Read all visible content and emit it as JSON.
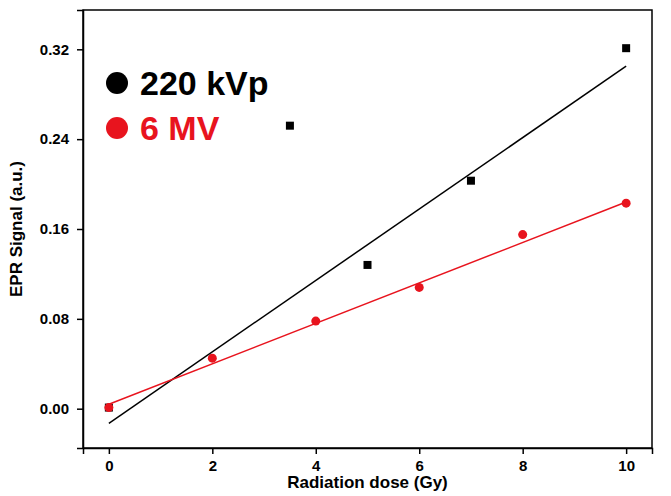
{
  "chart_data": {
    "type": "scatter",
    "x_label": "Radiation dose (Gy)",
    "y_label": "EPR Signal (a.u.)",
    "xlim": [
      -0.5,
      10.5
    ],
    "ylim": [
      -0.035,
      0.355
    ],
    "xticks": [
      0,
      2,
      4,
      6,
      8,
      10
    ],
    "yticks": [
      {
        "value": 0,
        "label": "0.00"
      },
      {
        "value": 0.08,
        "label": "0.08"
      },
      {
        "value": 0.16,
        "label": "0.16"
      },
      {
        "value": 0.24,
        "label": "0.24"
      },
      {
        "value": 0.32,
        "label": "0.32"
      }
    ],
    "legend": "upper left",
    "series": [
      {
        "name": "220 kVp",
        "color": "#000000",
        "marker": "square",
        "x": [
          0,
          3.5,
          5,
          7,
          10
        ],
        "values": [
          0.001,
          0.252,
          0.128,
          0.203,
          0.321
        ]
      },
      {
        "name": "6 MV",
        "color": "#e8141e",
        "marker": "circle",
        "x": [
          0,
          2,
          4,
          6,
          8,
          10
        ],
        "values": [
          0.001,
          0.045,
          0.078,
          0.108,
          0.155,
          0.183
        ]
      },
      {
        "type": "line",
        "color": "#000000",
        "x": [
          0,
          10
        ],
        "values": [
          -0.013,
          0.305
        ]
      },
      {
        "type": "line",
        "color": "#e8141e",
        "x": [
          0,
          10
        ],
        "values": [
          0.004,
          0.184
        ]
      }
    ]
  }
}
